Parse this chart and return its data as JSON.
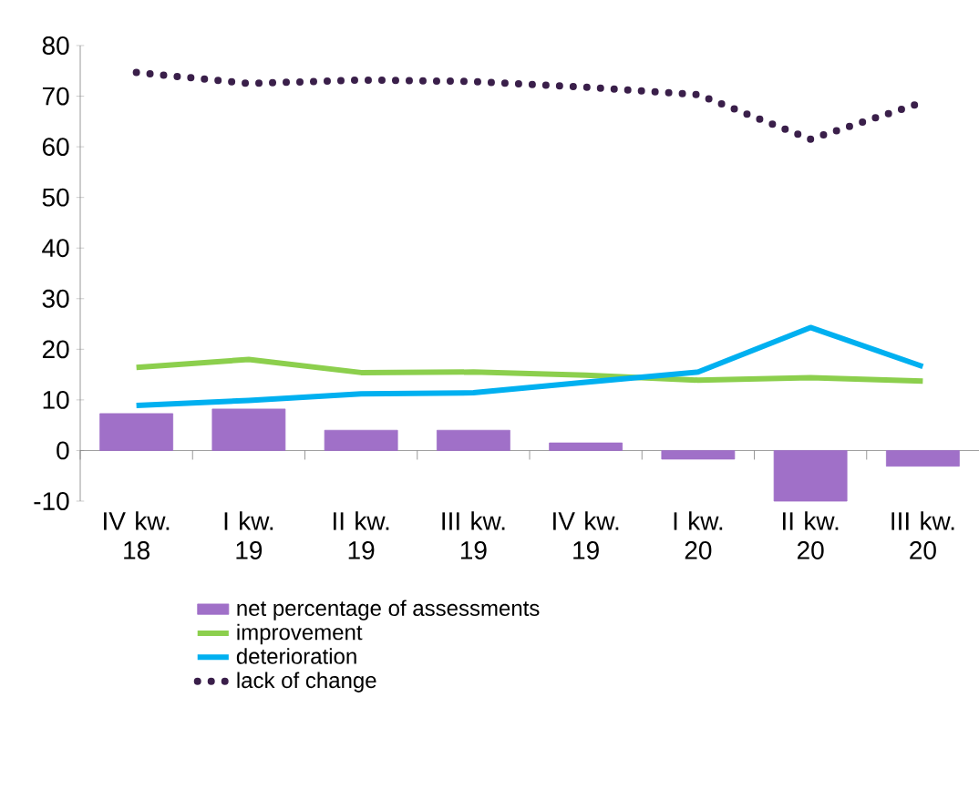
{
  "chart_data": {
    "type": "bar",
    "categories": [
      "IV kw. 18",
      "I kw. 19",
      "II kw. 19",
      "III kw. 19",
      "IV kw. 19",
      "I kw. 20",
      "II kw. 20",
      "III kw. 20"
    ],
    "series": [
      {
        "name": "net percentage of assessments",
        "color": "#a070c8",
        "values": [
          7.3,
          8.2,
          4.0,
          4.0,
          1.5,
          -1.7,
          -10,
          -3.1
        ]
      },
      {
        "name": "improvement",
        "type": "line",
        "color": "#8ccf4d",
        "values": [
          16.4,
          18.0,
          15.4,
          15.5,
          14.9,
          13.9,
          14.4,
          13.7
        ]
      },
      {
        "name": "deterioration",
        "type": "line",
        "color": "#00b0f0",
        "values": [
          8.9,
          9.9,
          11.2,
          11.4,
          13.5,
          15.5,
          24.3,
          16.6
        ]
      },
      {
        "name": "lack of change",
        "type": "line",
        "line_style": "dotted",
        "color": "#3a1f4a",
        "values": [
          74.7,
          72.5,
          73.2,
          72.9,
          71.8,
          70.3,
          61.5,
          68.8
        ]
      }
    ],
    "ylim": [
      -10,
      80
    ],
    "yticks": [
      -10,
      0,
      10,
      20,
      30,
      40,
      50,
      60,
      70,
      80
    ],
    "grid": false,
    "legend": "bottom"
  }
}
